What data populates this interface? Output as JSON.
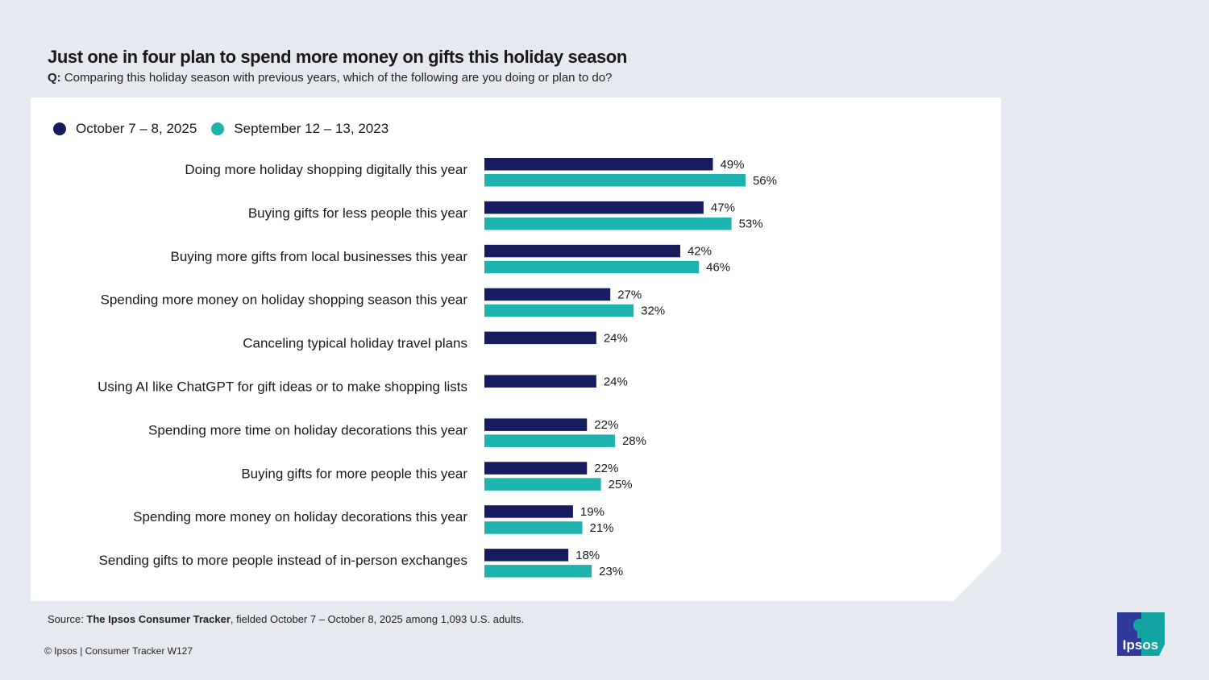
{
  "title": "Just one in four plan to spend more money on gifts this holiday season",
  "question_prefix": "Q:",
  "question": "Comparing this holiday season with previous years, which of the following are you doing or plan to do?",
  "colors": {
    "series_2025": "#161c5e",
    "series_2023": "#1fb3b0",
    "background": "#e6e9ef"
  },
  "chart_data": {
    "type": "bar",
    "orientation": "horizontal",
    "legend_position": "top-left",
    "grid": false,
    "categories": [
      "Doing more holiday shopping digitally this year",
      "Buying gifts for less people this year",
      "Buying more gifts from local businesses this year",
      "Spending more money on holiday shopping season this year",
      "Canceling typical holiday travel plans",
      "Using AI like ChatGPT for gift ideas or to make shopping lists",
      "Spending more time on holiday decorations this year",
      "Buying gifts for more people this year",
      "Spending more money on holiday decorations this year",
      "Sending gifts to more people instead of in-person exchanges"
    ],
    "series": [
      {
        "name": "October 7 – 8, 2025",
        "color": "#161c5e",
        "values": [
          49,
          47,
          42,
          27,
          24,
          24,
          22,
          22,
          19,
          18
        ]
      },
      {
        "name": "September 12 – 13, 2023",
        "color": "#1fb3b0",
        "values": [
          56,
          53,
          46,
          32,
          null,
          null,
          28,
          25,
          21,
          23
        ]
      }
    ],
    "value_suffix": "%"
  },
  "source": {
    "prefix": "Source: ",
    "bold": "The Ipsos Consumer Tracker",
    "rest": ", fielded October 7 – October 8, 2025 among 1,093 U.S. adults."
  },
  "copyright": "© Ipsos | Consumer Tracker W127",
  "logo_text": "Ipsos"
}
